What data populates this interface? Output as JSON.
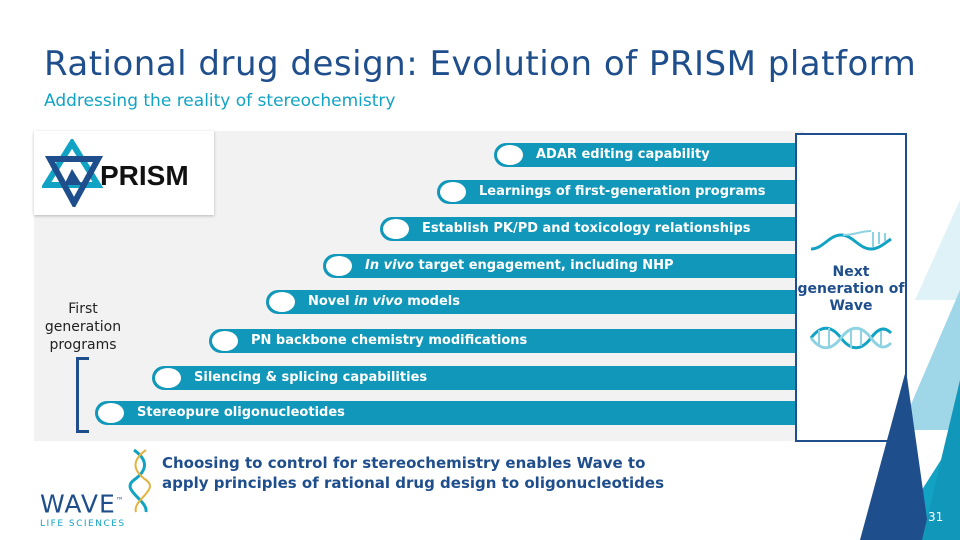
{
  "title": "Rational drug design: Evolution of PRISM platform",
  "subtitle": "Addressing the reality of stereochemistry",
  "logo": {
    "text": "PRISM",
    "icon": "prism-logo-icon"
  },
  "first_gen_label": "First generation programs",
  "next_gen_label": "Next generation of Wave",
  "steps": [
    {
      "pre": "",
      "em": "",
      "post": "ADAR editing capability"
    },
    {
      "pre": "",
      "em": "",
      "post": "Learnings of first-generation programs"
    },
    {
      "pre": "",
      "em": "",
      "post": "Establish PK/PD and toxicology relationships"
    },
    {
      "pre": "",
      "em": "In vivo",
      "post": " target engagement, including NHP"
    },
    {
      "pre": "Novel ",
      "em": "in vivo",
      "post": " models"
    },
    {
      "pre": "",
      "em": "",
      "post": "PN backbone chemistry modifications"
    },
    {
      "pre": "",
      "em": "",
      "post": "Silencing & splicing capabilities"
    },
    {
      "pre": "",
      "em": "",
      "post": "Stereopure oligonucleotides"
    }
  ],
  "conclusion": {
    "line1": "Choosing to control for stereochemistry enables Wave to",
    "line2": "apply principles of rational drug design to oligonucleotides"
  },
  "company": {
    "name": "WAVE",
    "tm": "™",
    "sub": "LIFE SCIENCES"
  },
  "page_number": "31",
  "colors": {
    "navy": "#1f4e8c",
    "teal": "#1197b9",
    "cyan": "#12a3c4"
  }
}
